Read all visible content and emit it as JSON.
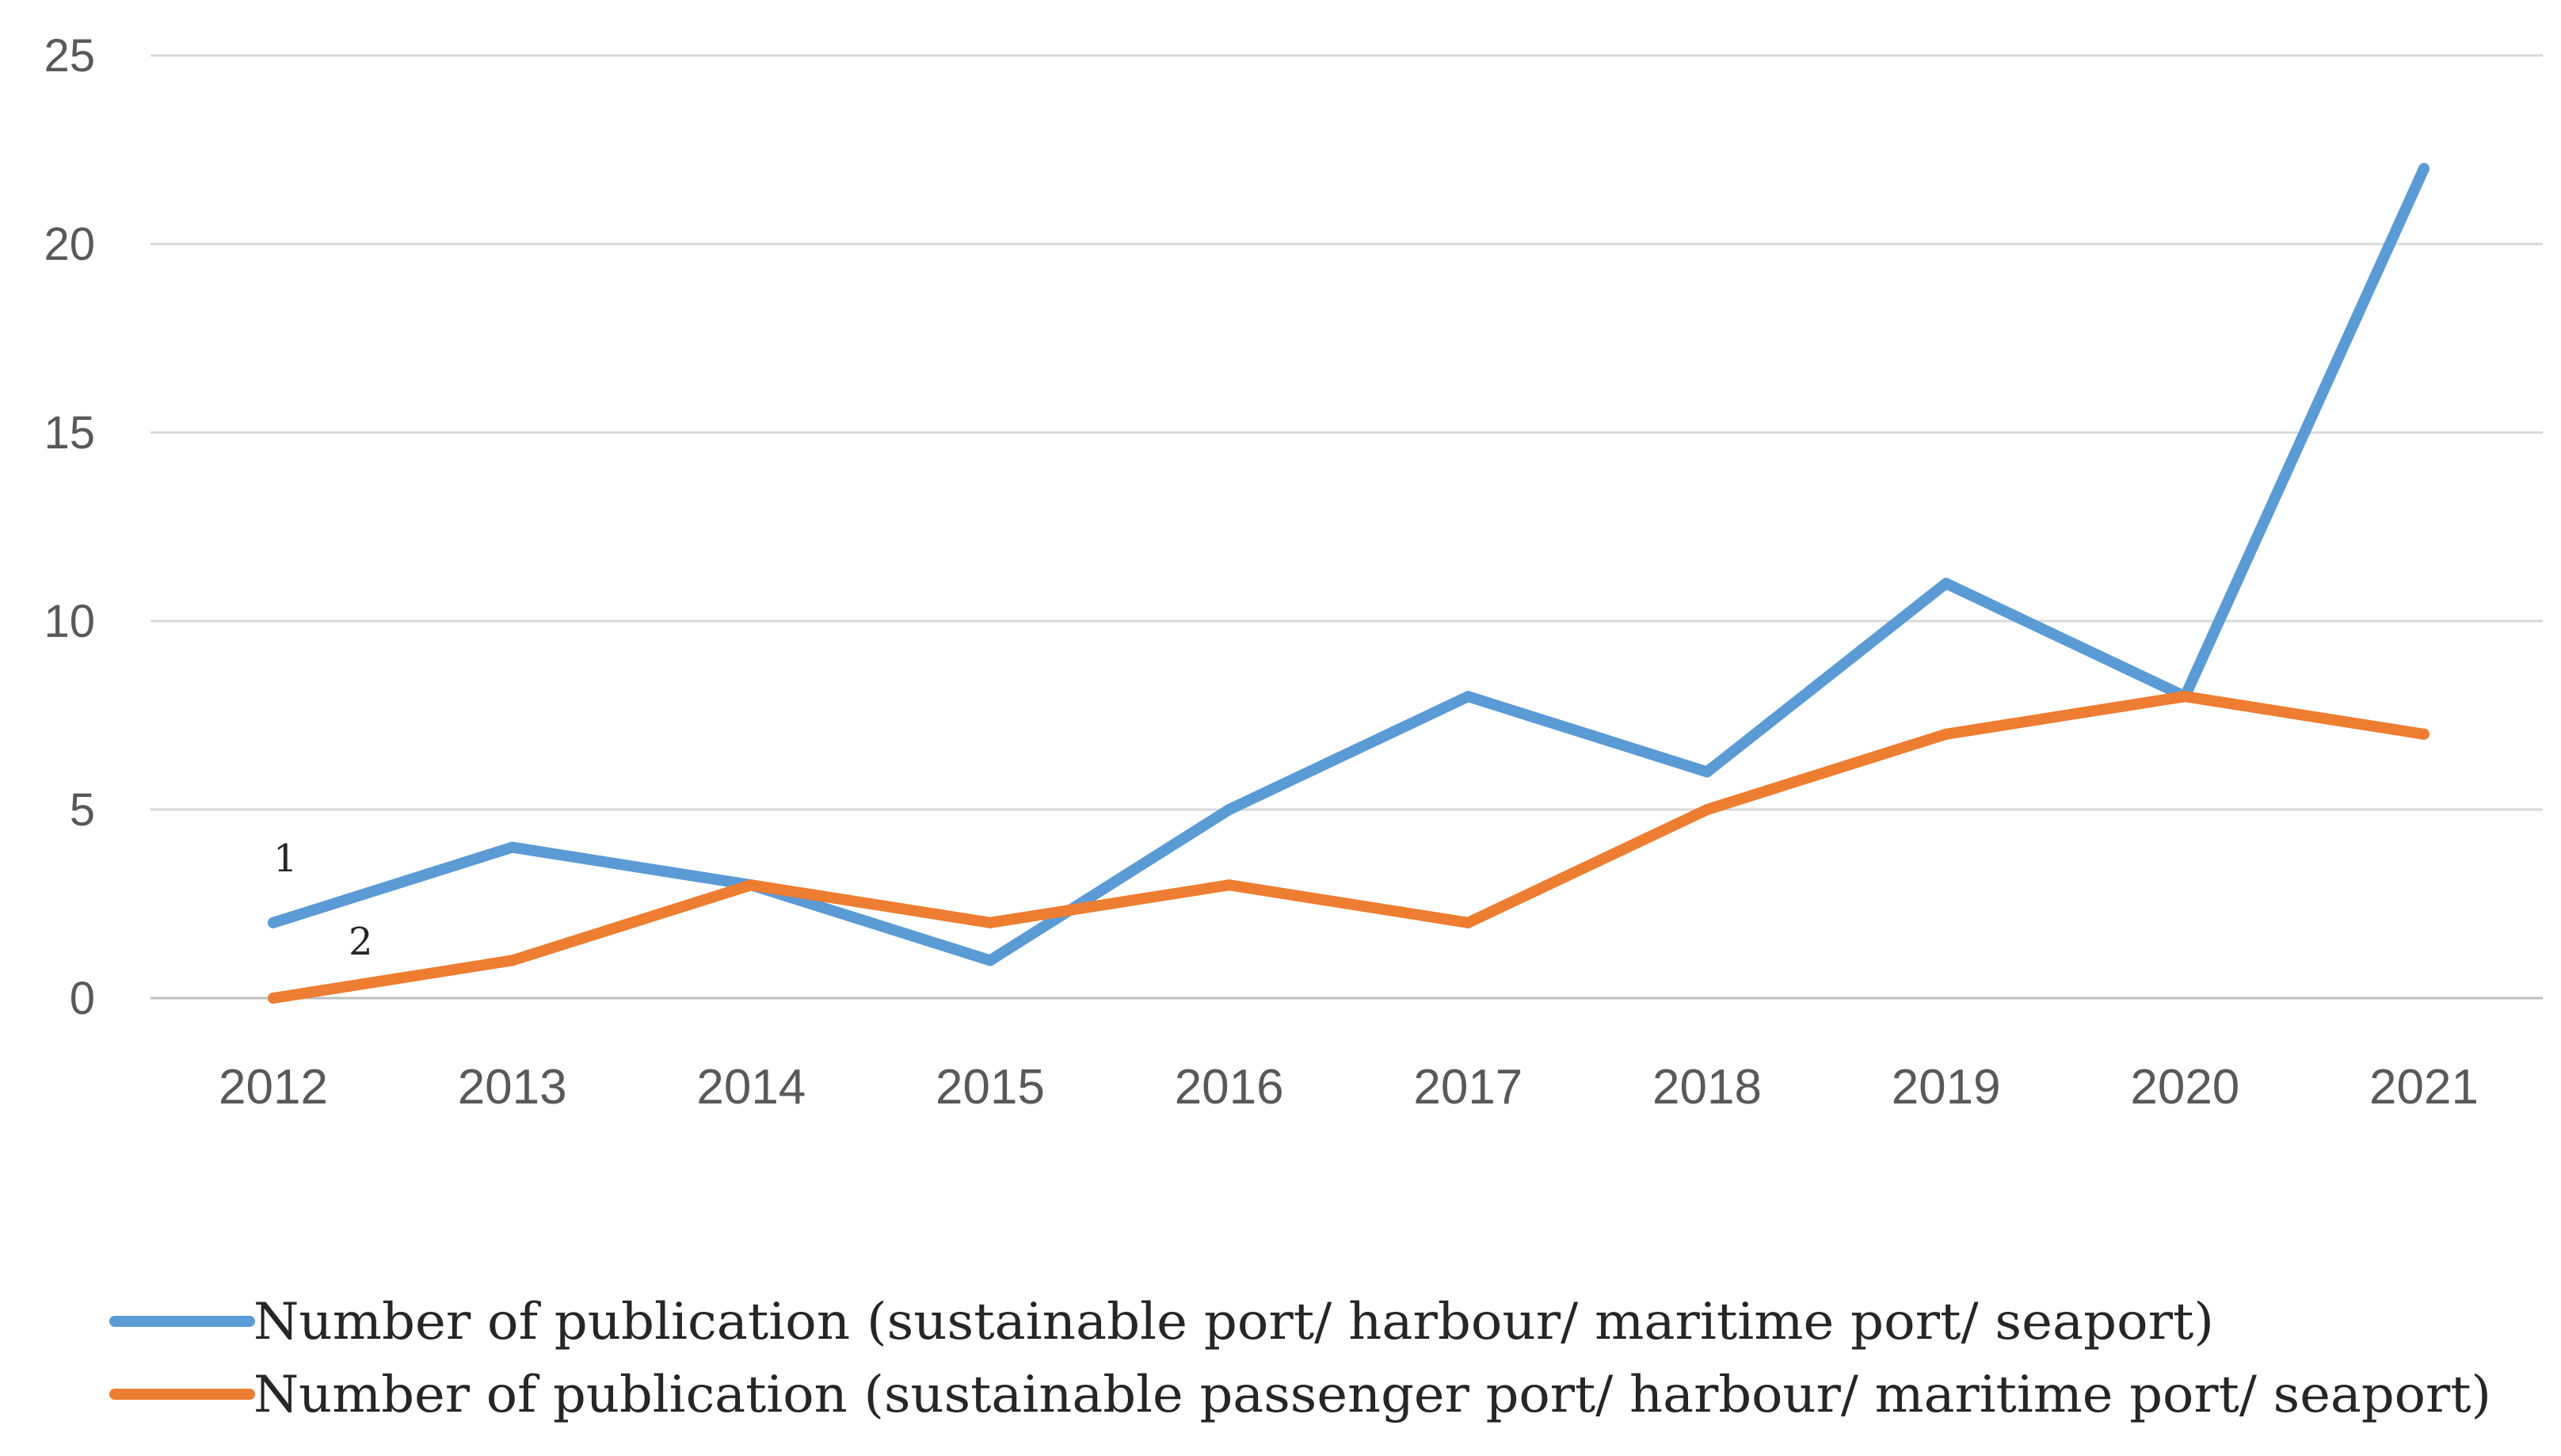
{
  "chart_data": {
    "type": "line",
    "title": "",
    "xlabel": "",
    "ylabel": "",
    "categories": [
      "2012",
      "2013",
      "2014",
      "2015",
      "2016",
      "2017",
      "2018",
      "2019",
      "2020",
      "2021"
    ],
    "ylim": [
      0,
      25
    ],
    "yticks": [
      0,
      5,
      10,
      15,
      20,
      25
    ],
    "grid": true,
    "legend_position": "bottom",
    "series": [
      {
        "name": "Number of publication (sustainable port/ harbour/ maritime port/ seaport)",
        "color": "#5B9BD5",
        "values": [
          2,
          4,
          3,
          1,
          5,
          8,
          6,
          11,
          8,
          22
        ],
        "annotation": "1"
      },
      {
        "name": "Number of publication (sustainable passenger port/ harbour/ maritime port/ seaport)",
        "color": "#ED7D31",
        "values": [
          0,
          1,
          3,
          2,
          3,
          2,
          5,
          7,
          8,
          7
        ],
        "annotation": "2"
      }
    ]
  }
}
